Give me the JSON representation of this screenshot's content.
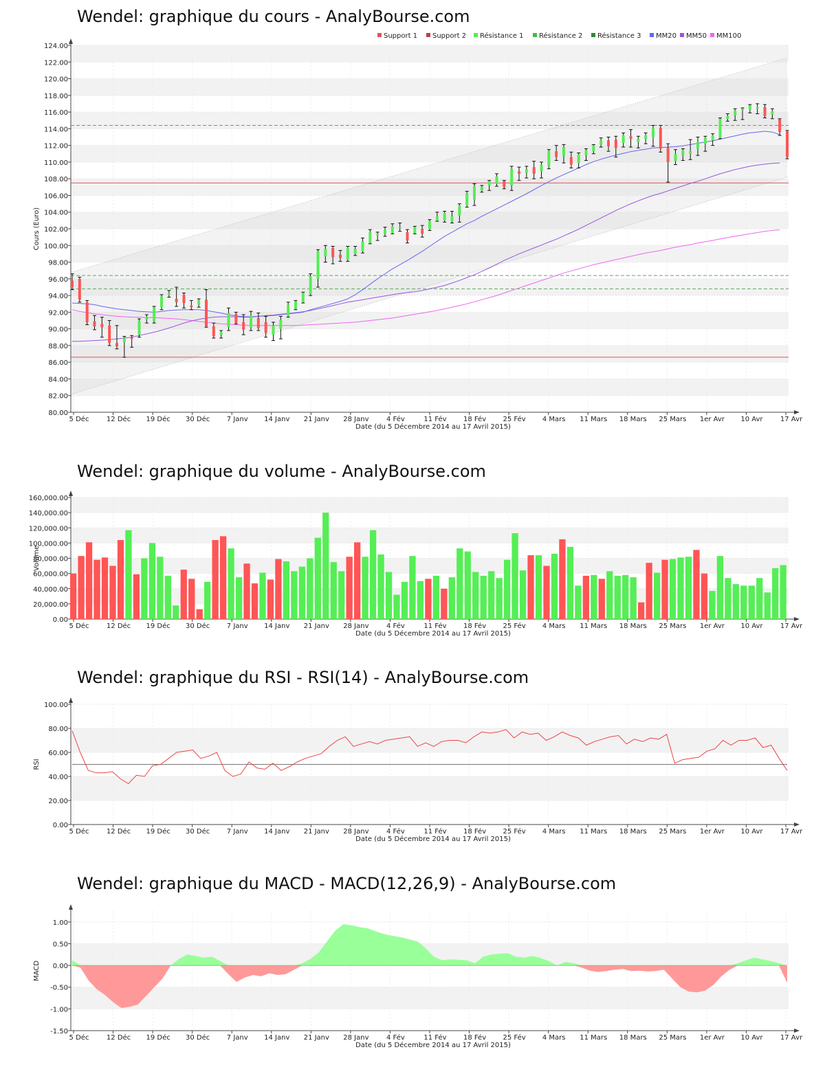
{
  "x_ticks": [
    "5 Déc",
    "12 Déc",
    "19 Déc",
    "30 Déc",
    "7 Janv",
    "14 Janv",
    "21 Janv",
    "28 Janv",
    "4 Fév",
    "11 Fév",
    "18 Fév",
    "25 Fév",
    "4 Mars",
    "11 Mars",
    "18 Mars",
    "25 Mars",
    "1er Avr",
    "10 Avr",
    "17 Avr"
  ],
  "x_label": "Date (du 5 Décembre 2014 au 17 Avril 2015)",
  "colors": {
    "up": "#55ee55",
    "down": "#ff5555",
    "mm20": "#6666ee",
    "mm50": "#9955dd",
    "mm100": "#ee66ee",
    "support": "#dd5555",
    "resistance": "#55aa55",
    "rsi": "#ee4444",
    "macd_pos": "#99ff99",
    "macd_neg": "#ff9999"
  },
  "price_chart": {
    "title": "Wendel: graphique du cours - AnalyBourse.com",
    "ylabel": "Cours (Euro)",
    "ylim": [
      80,
      124
    ],
    "y_ticks": [
      "80.00",
      "82.00",
      "84.00",
      "86.00",
      "88.00",
      "90.00",
      "92.00",
      "94.00",
      "96.00",
      "98.00",
      "100.00",
      "102.00",
      "104.00",
      "106.00",
      "108.00",
      "110.00",
      "112.00",
      "114.00",
      "116.00",
      "118.00",
      "120.00",
      "122.00",
      "124.00"
    ],
    "legend": [
      "Support 1",
      "Support 2",
      "Résistance 1",
      "Résistance 2",
      "Résistance 3",
      "MM20",
      "MM50",
      "MM100"
    ],
    "support_levels": [
      86.6,
      107.5
    ],
    "resistance_levels": [
      94.8,
      96.4,
      114.4
    ]
  },
  "volume_chart": {
    "title": "Wendel: graphique du volume - AnalyBourse.com",
    "ylabel": "Volume",
    "ylim": [
      0,
      160000
    ],
    "y_ticks": [
      "0.00",
      "20,000.00",
      "40,000.00",
      "60,000.00",
      "80,000.00",
      "100,000.00",
      "120,000.00",
      "140,000.00",
      "160,000.00"
    ]
  },
  "rsi_chart": {
    "title": "Wendel: graphique du RSI - RSI(14) - AnalyBourse.com",
    "ylabel": "RSI",
    "ylim": [
      0,
      100
    ],
    "y_ticks": [
      "0.00",
      "20.00",
      "40.00",
      "60.00",
      "80.00",
      "100.00"
    ],
    "reference_level": 50
  },
  "macd_chart": {
    "title": "Wendel: graphique du MACD - MACD(12,26,9) - AnalyBourse.com",
    "ylabel": "MACD",
    "ylim": [
      -1.5,
      1.25
    ],
    "y_ticks": [
      "-1.50",
      "-1.00",
      "-0.50",
      "0.00",
      "0.50",
      "1.00"
    ]
  },
  "chart_data": [
    {
      "type": "candlestick",
      "title": "Wendel: graphique du cours - AnalyBourse.com",
      "ylabel": "Cours (Euro)",
      "ylim": [
        80,
        124
      ],
      "candles": [
        [
          95.8,
          96.6,
          94.7,
          95.0
        ],
        [
          96.0,
          96.2,
          93.2,
          93.5
        ],
        [
          93.2,
          93.4,
          90.5,
          90.8
        ],
        [
          90.9,
          91.6,
          89.9,
          90.3
        ],
        [
          90.6,
          91.4,
          89.0,
          90.2
        ],
        [
          90.4,
          91.0,
          88.0,
          88.3
        ],
        [
          88.3,
          90.4,
          87.6,
          87.9
        ],
        [
          88.4,
          89.1,
          86.6,
          88.9
        ],
        [
          89.0,
          89.2,
          87.8,
          88.8
        ],
        [
          89.3,
          91.2,
          89.0,
          91.0
        ],
        [
          91.1,
          91.7,
          90.7,
          91.4
        ],
        [
          90.9,
          92.7,
          90.7,
          92.6
        ],
        [
          92.6,
          94.1,
          92.3,
          93.9
        ],
        [
          94.1,
          94.6,
          93.8,
          94.3
        ],
        [
          93.6,
          95.0,
          92.7,
          93.2
        ],
        [
          94.1,
          94.3,
          92.5,
          93.1
        ],
        [
          92.8,
          93.4,
          92.3,
          92.6
        ],
        [
          92.9,
          93.6,
          92.6,
          93.4
        ],
        [
          93.5,
          94.7,
          90.2,
          90.3
        ],
        [
          90.3,
          90.7,
          88.9,
          89.1
        ],
        [
          89.3,
          89.8,
          88.9,
          89.6
        ],
        [
          90.2,
          92.5,
          89.8,
          91.9
        ],
        [
          91.8,
          92.0,
          90.6,
          90.7
        ],
        [
          90.8,
          91.7,
          89.3,
          89.9
        ],
        [
          90.2,
          92.1,
          89.8,
          91.6
        ],
        [
          91.3,
          91.9,
          89.8,
          90.1
        ],
        [
          90.8,
          91.5,
          89.0,
          89.5
        ],
        [
          89.3,
          90.8,
          88.6,
          90.4
        ],
        [
          90.0,
          91.5,
          88.8,
          91.1
        ],
        [
          91.5,
          93.2,
          91.4,
          92.9
        ],
        [
          92.4,
          93.4,
          92.3,
          93.3
        ],
        [
          93.2,
          94.4,
          93.1,
          94.3
        ],
        [
          94.2,
          96.6,
          94.0,
          96.3
        ],
        [
          96.0,
          99.5,
          95.0,
          99.3
        ],
        [
          98.7,
          100.0,
          98.0,
          99.6
        ],
        [
          99.7,
          99.9,
          97.8,
          98.6
        ],
        [
          98.9,
          99.4,
          98.1,
          98.5
        ],
        [
          98.3,
          99.9,
          98.1,
          99.7
        ],
        [
          99.0,
          99.9,
          98.8,
          99.6
        ],
        [
          99.3,
          100.9,
          99.1,
          100.5
        ],
        [
          100.3,
          101.9,
          100.2,
          101.6
        ],
        [
          101.2,
          101.6,
          100.6,
          101.4
        ],
        [
          101.4,
          102.2,
          101.1,
          101.9
        ],
        [
          101.5,
          102.6,
          101.4,
          102.3
        ],
        [
          102.2,
          102.7,
          101.7,
          102.2
        ],
        [
          101.6,
          101.9,
          100.3,
          100.6
        ],
        [
          101.5,
          102.3,
          101.4,
          102.2
        ],
        [
          102.0,
          102.4,
          101.0,
          101.4
        ],
        [
          102.0,
          103.1,
          101.8,
          102.9
        ],
        [
          103.0,
          104.0,
          102.9,
          103.5
        ],
        [
          103.0,
          104.1,
          102.8,
          103.9
        ],
        [
          102.9,
          104.1,
          102.7,
          103.5
        ],
        [
          103.6,
          105.0,
          102.8,
          104.8
        ],
        [
          104.8,
          106.5,
          104.6,
          106.3
        ],
        [
          105.5,
          107.4,
          104.8,
          107.1
        ],
        [
          106.6,
          107.2,
          106.4,
          107.0
        ],
        [
          107.2,
          107.8,
          106.6,
          107.7
        ],
        [
          107.4,
          108.6,
          107.1,
          108.3
        ],
        [
          107.7,
          107.8,
          106.8,
          107.0
        ],
        [
          107.2,
          109.5,
          106.6,
          109.2
        ],
        [
          108.9,
          109.4,
          107.8,
          108.6
        ],
        [
          108.7,
          109.5,
          108.1,
          109.1
        ],
        [
          109.4,
          110.1,
          108.0,
          108.6
        ],
        [
          108.9,
          110.0,
          108.1,
          109.7
        ],
        [
          109.5,
          111.5,
          109.2,
          111.3
        ],
        [
          111.3,
          112.0,
          110.2,
          110.6
        ],
        [
          110.7,
          112.1,
          109.9,
          111.8
        ],
        [
          110.6,
          111.2,
          109.3,
          109.7
        ],
        [
          109.9,
          111.1,
          109.3,
          110.9
        ],
        [
          110.8,
          111.6,
          110.2,
          111.4
        ],
        [
          111.3,
          112.1,
          111.0,
          112.0
        ],
        [
          112.1,
          112.9,
          111.8,
          112.6
        ],
        [
          112.6,
          113.0,
          111.3,
          111.9
        ],
        [
          112.7,
          113.1,
          110.6,
          111.7
        ],
        [
          112.3,
          113.5,
          111.8,
          113.2
        ],
        [
          113.1,
          113.9,
          111.8,
          112.8
        ],
        [
          112.4,
          113.1,
          111.7,
          112.8
        ],
        [
          112.8,
          113.5,
          112.2,
          113.2
        ],
        [
          113.0,
          114.4,
          111.9,
          114.1
        ],
        [
          114.1,
          114.4,
          111.2,
          111.6
        ],
        [
          111.7,
          112.2,
          107.6,
          110.0
        ],
        [
          110.1,
          111.5,
          109.7,
          111.0
        ],
        [
          110.8,
          111.6,
          110.2,
          111.4
        ],
        [
          111.0,
          112.7,
          110.3,
          111.3
        ],
        [
          111.6,
          113.0,
          110.8,
          112.4
        ],
        [
          112.2,
          113.1,
          111.3,
          112.9
        ],
        [
          112.6,
          113.4,
          112.0,
          113.2
        ],
        [
          112.9,
          115.3,
          112.8,
          115.2
        ],
        [
          115.2,
          115.8,
          114.9,
          115.5
        ],
        [
          115.6,
          116.4,
          115.0,
          116.2
        ],
        [
          116.2,
          116.5,
          115.1,
          116.4
        ],
        [
          116.3,
          116.9,
          115.9,
          116.8
        ],
        [
          116.4,
          117.0,
          115.8,
          116.6
        ],
        [
          116.6,
          116.9,
          115.3,
          115.5
        ],
        [
          115.7,
          116.4,
          115.2,
          116.1
        ],
        [
          115.1,
          115.2,
          113.2,
          113.6
        ],
        [
          113.7,
          113.8,
          110.4,
          110.6
        ]
      ],
      "mm20": [
        93.1,
        93.05,
        93.0,
        92.9,
        92.7,
        92.55,
        92.4,
        92.3,
        92.2,
        92.1,
        92.05,
        92.0,
        92.1,
        92.2,
        92.25,
        92.3,
        92.3,
        92.3,
        92.2,
        92.05,
        91.9,
        91.7,
        91.55,
        91.45,
        91.45,
        91.5,
        91.55,
        91.6,
        91.7,
        91.8,
        91.9,
        92.0,
        92.3,
        92.55,
        92.8,
        93.05,
        93.3,
        93.6,
        94.1,
        94.7,
        95.35,
        96.0,
        96.6,
        97.2,
        97.7,
        98.2,
        98.75,
        99.3,
        99.9,
        100.5,
        101.1,
        101.6,
        102.1,
        102.6,
        103.0,
        103.5,
        103.95,
        104.4,
        104.85,
        105.3,
        105.75,
        106.2,
        106.7,
        107.2,
        107.65,
        108.1,
        108.5,
        108.9,
        109.3,
        109.7,
        110.05,
        110.35,
        110.6,
        110.85,
        111.05,
        111.25,
        111.4,
        111.55,
        111.7,
        111.75,
        111.8,
        111.85,
        111.95,
        112.1,
        112.25,
        112.4,
        112.55,
        112.75,
        112.95,
        113.15,
        113.35,
        113.5,
        113.6,
        113.7,
        113.6,
        113.3
      ],
      "mm50": [
        88.5,
        88.5,
        88.55,
        88.6,
        88.65,
        88.7,
        88.8,
        88.9,
        89.0,
        89.2,
        89.4,
        89.6,
        89.85,
        90.1,
        90.4,
        90.7,
        90.95,
        91.15,
        91.3,
        91.4,
        91.45,
        91.45,
        91.45,
        91.4,
        91.4,
        91.5,
        91.6,
        91.65,
        91.75,
        91.85,
        91.95,
        92.05,
        92.2,
        92.4,
        92.6,
        92.8,
        93.0,
        93.2,
        93.35,
        93.5,
        93.65,
        93.8,
        93.95,
        94.1,
        94.25,
        94.35,
        94.45,
        94.6,
        94.8,
        95.0,
        95.2,
        95.5,
        95.8,
        96.15,
        96.5,
        96.9,
        97.3,
        97.75,
        98.2,
        98.6,
        99.0,
        99.35,
        99.7,
        100.05,
        100.4,
        100.75,
        101.15,
        101.55,
        101.95,
        102.4,
        102.85,
        103.3,
        103.75,
        104.2,
        104.6,
        105.0,
        105.35,
        105.7,
        106.0,
        106.25,
        106.55,
        106.85,
        107.15,
        107.45,
        107.7,
        108.0,
        108.3,
        108.6,
        108.85,
        109.1,
        109.3,
        109.5,
        109.65,
        109.75,
        109.85,
        109.9
      ],
      "mm100": [
        92.3,
        92.1,
        91.95,
        91.8,
        91.7,
        91.6,
        91.5,
        91.45,
        91.4,
        91.4,
        91.35,
        91.35,
        91.3,
        91.25,
        91.2,
        91.1,
        91.0,
        90.9,
        90.8,
        90.7,
        90.6,
        90.55,
        90.5,
        90.45,
        90.4,
        90.4,
        90.4,
        90.4,
        90.4,
        90.4,
        90.4,
        90.45,
        90.5,
        90.55,
        90.6,
        90.65,
        90.7,
        90.75,
        90.8,
        90.9,
        91.0,
        91.1,
        91.2,
        91.3,
        91.45,
        91.6,
        91.75,
        91.9,
        92.05,
        92.2,
        92.4,
        92.6,
        92.8,
        93.0,
        93.25,
        93.5,
        93.75,
        94.0,
        94.3,
        94.6,
        94.9,
        95.2,
        95.5,
        95.8,
        96.1,
        96.4,
        96.7,
        96.95,
        97.2,
        97.45,
        97.7,
        97.9,
        98.1,
        98.3,
        98.5,
        98.7,
        98.9,
        99.1,
        99.25,
        99.4,
        99.6,
        99.8,
        99.95,
        100.1,
        100.3,
        100.45,
        100.6,
        100.8,
        100.95,
        101.1,
        101.25,
        101.4,
        101.55,
        101.7,
        101.8,
        101.9
      ],
      "support_levels": [
        86.6,
        107.5
      ],
      "resistance_levels": [
        94.8,
        96.4,
        114.4
      ]
    },
    {
      "type": "bar",
      "title": "Wendel: graphique du volume - AnalyBourse.com",
      "ylabel": "Volume",
      "ylim": [
        0,
        160000
      ],
      "values": [
        60000,
        83000,
        101000,
        78000,
        81000,
        70000,
        104000,
        117000,
        59000,
        80000,
        100000,
        82000,
        57000,
        18000,
        65000,
        53000,
        13000,
        49000,
        104000,
        109000,
        93000,
        55000,
        73000,
        47000,
        61000,
        52000,
        79000,
        76000,
        63000,
        69000,
        80000,
        107000,
        140000,
        75000,
        63000,
        82000,
        101000,
        82000,
        117000,
        85000,
        62000,
        32000,
        49000,
        83000,
        50000,
        53000,
        57000,
        40000,
        55000,
        93000,
        89000,
        62000,
        57000,
        63000,
        54000,
        78000,
        113000,
        64000,
        84000,
        84000,
        70000,
        86000,
        105000,
        95000,
        44000,
        57000,
        58000,
        53000,
        63000,
        57000,
        58000,
        55000,
        22000,
        74000,
        61000,
        78000,
        79000,
        81000,
        82000,
        91000,
        60000,
        37000,
        83000,
        54000,
        46000,
        44000,
        44000,
        54000,
        35000,
        67000,
        71000
      ]
    },
    {
      "type": "line",
      "title": "Wendel: graphique du RSI - RSI(14) - AnalyBourse.com",
      "ylabel": "RSI",
      "ylim": [
        0,
        100
      ],
      "values": [
        78,
        60,
        45,
        43,
        43,
        44,
        38,
        34,
        41,
        40,
        49,
        50,
        55,
        60,
        61,
        62,
        55,
        57,
        60,
        45,
        40,
        42,
        52,
        47,
        46,
        51,
        45,
        48,
        52,
        55,
        57,
        59,
        65,
        70,
        73,
        65,
        67,
        69,
        67,
        70,
        71,
        72,
        73,
        65,
        68,
        65,
        69,
        70,
        70,
        68,
        73,
        77,
        76,
        77,
        79,
        72,
        77,
        75,
        76,
        70,
        73,
        77,
        74,
        72,
        66,
        69,
        71,
        73,
        74,
        67,
        71,
        69,
        72,
        71,
        75,
        51,
        54,
        55,
        56,
        61,
        63,
        70,
        66,
        70,
        70,
        72,
        64,
        66,
        55,
        45
      ],
      "reference_level": 50
    },
    {
      "type": "area",
      "title": "Wendel: graphique du MACD - MACD(12,26,9) - AnalyBourse.com",
      "ylabel": "MACD",
      "ylim": [
        -1.5,
        1.25
      ],
      "values": [
        0.12,
        -0.05,
        -0.35,
        -0.55,
        -0.68,
        -0.85,
        -0.98,
        -0.95,
        -0.9,
        -0.7,
        -0.5,
        -0.3,
        0.0,
        0.15,
        0.25,
        0.22,
        0.18,
        0.2,
        0.1,
        -0.2,
        -0.38,
        -0.28,
        -0.22,
        -0.25,
        -0.18,
        -0.22,
        -0.2,
        -0.1,
        0.05,
        0.15,
        0.3,
        0.55,
        0.8,
        0.95,
        0.92,
        0.88,
        0.85,
        0.78,
        0.72,
        0.68,
        0.65,
        0.6,
        0.55,
        0.4,
        0.2,
        0.12,
        0.14,
        0.13,
        0.12,
        0.05,
        0.2,
        0.25,
        0.27,
        0.28,
        0.2,
        0.18,
        0.22,
        0.17,
        0.1,
        0.0,
        0.08,
        0.05,
        -0.05,
        -0.12,
        -0.15,
        -0.13,
        -0.1,
        -0.08,
        -0.13,
        -0.12,
        -0.14,
        -0.13,
        -0.1,
        -0.3,
        -0.5,
        -0.6,
        -0.62,
        -0.58,
        -0.45,
        -0.25,
        -0.1,
        0.05,
        0.12,
        0.18,
        0.14,
        0.1,
        0.05,
        -0.4
      ]
    }
  ]
}
